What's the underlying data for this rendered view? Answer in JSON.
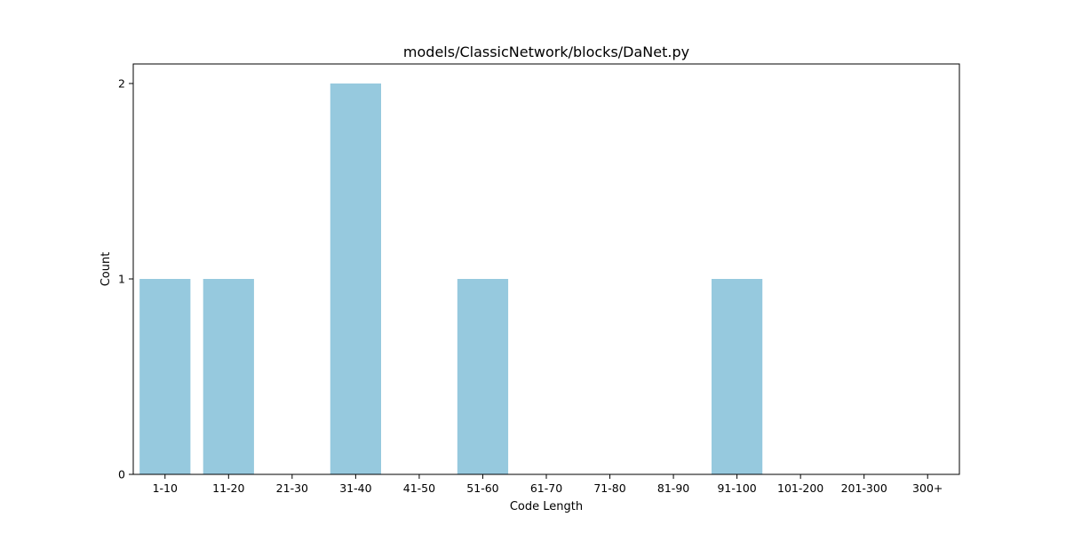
{
  "chart_data": {
    "type": "bar",
    "title": "models/ClassicNetwork/blocks/DaNet.py",
    "xlabel": "Code Length",
    "ylabel": "Count",
    "categories": [
      "1-10",
      "11-20",
      "21-30",
      "31-40",
      "41-50",
      "51-60",
      "61-70",
      "71-80",
      "81-90",
      "91-100",
      "101-200",
      "201-300",
      "300+"
    ],
    "values": [
      1,
      1,
      0,
      2,
      0,
      1,
      0,
      0,
      0,
      1,
      0,
      0,
      0
    ],
    "ylim": [
      0,
      2.1
    ],
    "yticks": [
      0,
      1,
      2
    ],
    "bar_color": "#96c9de",
    "grid": false
  }
}
